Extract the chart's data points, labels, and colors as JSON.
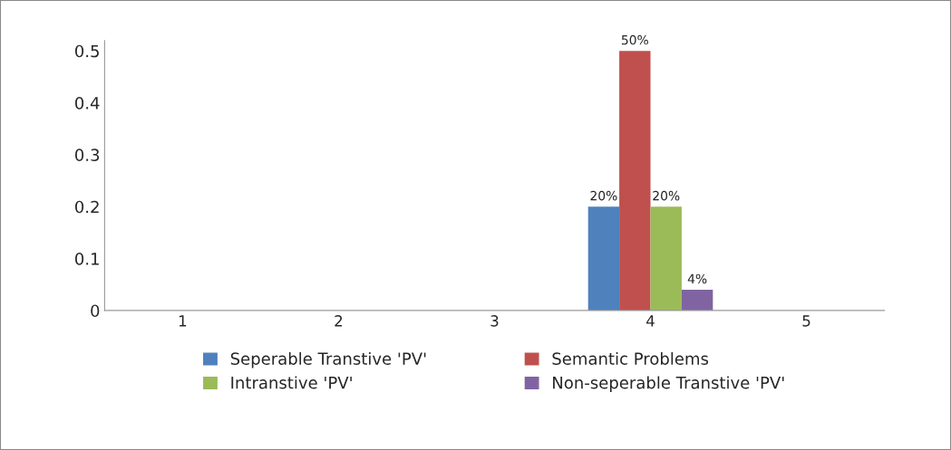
{
  "chart_data": {
    "type": "bar",
    "categories": [
      "1",
      "2",
      "3",
      "4",
      "5"
    ],
    "series": [
      {
        "name": "Seperable Transtive 'PV'",
        "color": "#4f81bd",
        "values": [
          null,
          null,
          null,
          0.2,
          null
        ],
        "value_labels": [
          null,
          null,
          null,
          "20%",
          null
        ]
      },
      {
        "name": "Semantic Problems",
        "color": "#c0504d",
        "values": [
          null,
          null,
          null,
          0.5,
          null
        ],
        "value_labels": [
          null,
          null,
          null,
          "50%",
          null
        ]
      },
      {
        "name": "Intranstive 'PV'",
        "color": "#9bbb59",
        "values": [
          null,
          null,
          null,
          0.2,
          null
        ],
        "value_labels": [
          null,
          null,
          null,
          "20%",
          null
        ]
      },
      {
        "name": "Non-seperable Transtive 'PV'",
        "color": "#8064a2",
        "values": [
          null,
          null,
          null,
          0.04,
          null
        ],
        "value_labels": [
          null,
          null,
          null,
          "4%",
          null
        ]
      }
    ],
    "ylim": [
      0,
      0.52
    ],
    "yticks": [
      0,
      0.1,
      0.2,
      0.3,
      0.4,
      0.5
    ],
    "grid": false,
    "legend": "bottom"
  }
}
